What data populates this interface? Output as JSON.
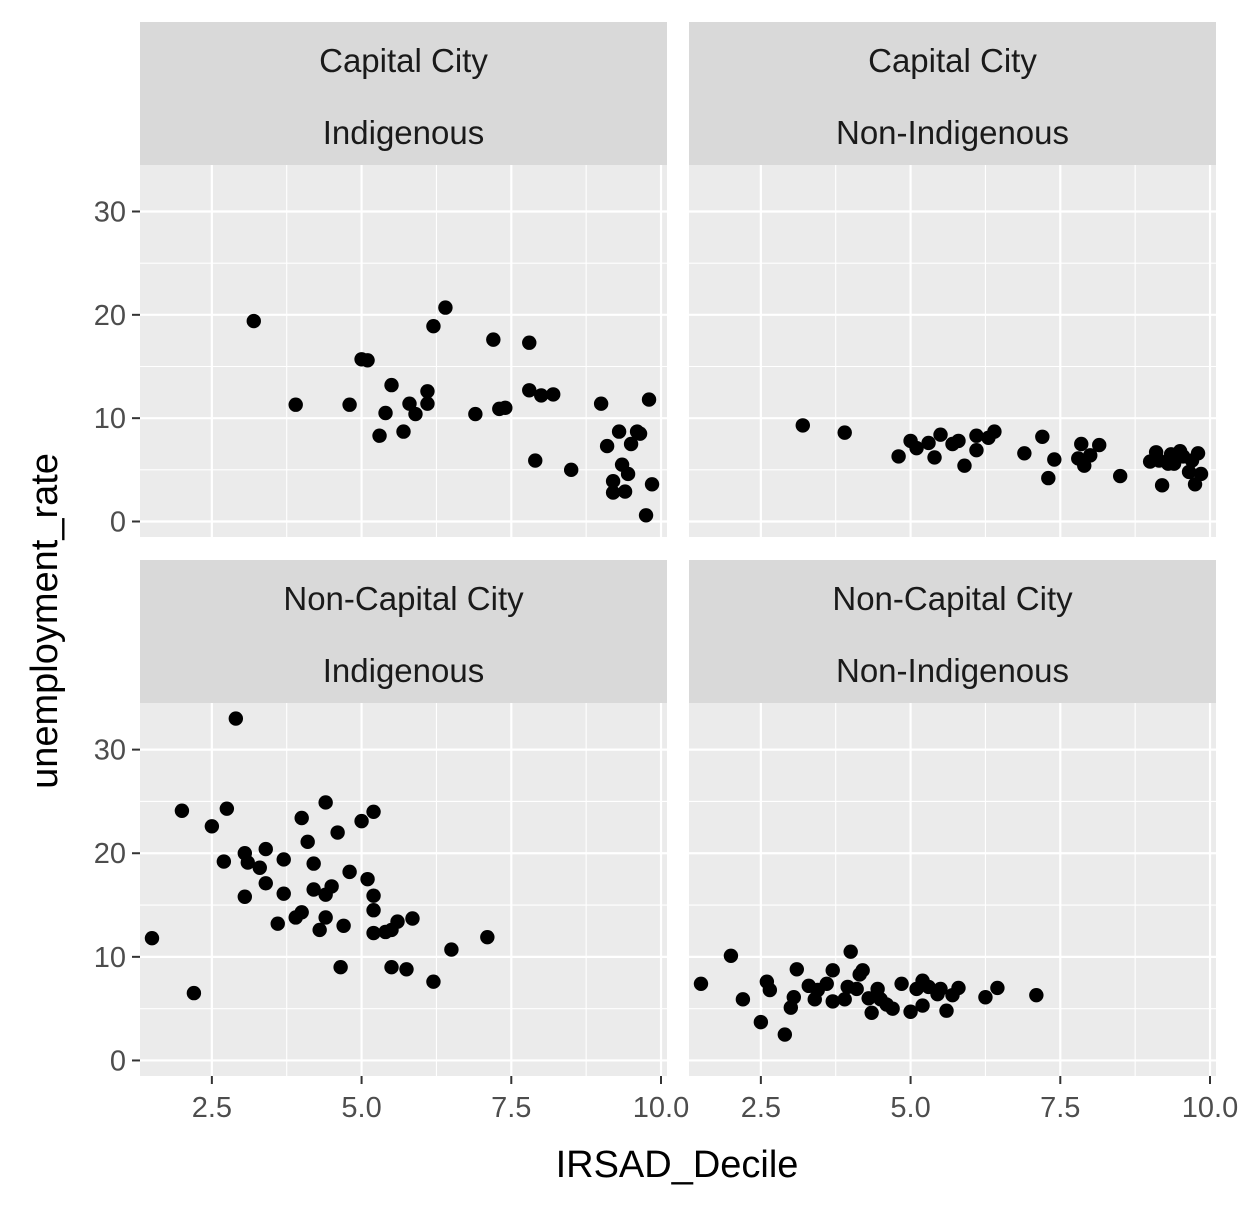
{
  "chart_data": {
    "type": "scatter",
    "xlabel": "IRSAD_Decile",
    "ylabel": "unemployment_rate",
    "xlim": [
      1.3,
      10.1
    ],
    "ylim": [
      -1.5,
      34.5
    ],
    "x_ticks": [
      2.5,
      5.0,
      7.5,
      10.0
    ],
    "x_tick_labels": [
      "2.5",
      "5.0",
      "7.5",
      "10.0"
    ],
    "y_ticks": [
      0,
      10,
      20,
      30
    ],
    "y_tick_labels": [
      "0",
      "10",
      "20",
      "30"
    ],
    "grid": true,
    "panels": [
      {
        "strip": [
          "Capital City",
          "Indigenous"
        ],
        "points": [
          [
            3.2,
            19.4
          ],
          [
            3.9,
            11.3
          ],
          [
            4.8,
            11.3
          ],
          [
            5.0,
            15.7
          ],
          [
            5.1,
            15.6
          ],
          [
            5.3,
            8.3
          ],
          [
            5.4,
            10.5
          ],
          [
            5.5,
            13.2
          ],
          [
            5.7,
            8.7
          ],
          [
            5.8,
            11.4
          ],
          [
            5.9,
            10.4
          ],
          [
            6.1,
            12.6
          ],
          [
            6.1,
            11.4
          ],
          [
            6.2,
            18.9
          ],
          [
            6.4,
            20.7
          ],
          [
            6.9,
            10.4
          ],
          [
            7.2,
            17.6
          ],
          [
            7.3,
            10.9
          ],
          [
            7.4,
            11.0
          ],
          [
            7.8,
            12.7
          ],
          [
            7.8,
            17.3
          ],
          [
            7.9,
            5.9
          ],
          [
            8.0,
            12.2
          ],
          [
            8.2,
            12.3
          ],
          [
            8.5,
            5.0
          ],
          [
            9.0,
            11.4
          ],
          [
            9.1,
            7.3
          ],
          [
            9.2,
            3.9
          ],
          [
            9.2,
            2.8
          ],
          [
            9.3,
            8.7
          ],
          [
            9.35,
            5.5
          ],
          [
            9.4,
            2.9
          ],
          [
            9.45,
            4.6
          ],
          [
            9.5,
            7.5
          ],
          [
            9.6,
            8.7
          ],
          [
            9.65,
            8.5
          ],
          [
            9.75,
            0.6
          ],
          [
            9.8,
            11.8
          ],
          [
            9.85,
            3.6
          ]
        ]
      },
      {
        "strip": [
          "Capital City",
          "Non-Indigenous"
        ],
        "points": [
          [
            3.2,
            9.3
          ],
          [
            3.9,
            8.6
          ],
          [
            4.8,
            6.3
          ],
          [
            5.0,
            7.8
          ],
          [
            5.1,
            7.1
          ],
          [
            5.3,
            7.6
          ],
          [
            5.4,
            6.2
          ],
          [
            5.5,
            8.4
          ],
          [
            5.7,
            7.5
          ],
          [
            5.8,
            7.8
          ],
          [
            5.9,
            5.4
          ],
          [
            6.1,
            6.9
          ],
          [
            6.1,
            8.3
          ],
          [
            6.3,
            8.1
          ],
          [
            6.4,
            8.7
          ],
          [
            6.9,
            6.6
          ],
          [
            7.2,
            8.2
          ],
          [
            7.3,
            4.2
          ],
          [
            7.4,
            6.0
          ],
          [
            7.8,
            6.1
          ],
          [
            7.85,
            7.5
          ],
          [
            7.9,
            5.4
          ],
          [
            8.0,
            6.4
          ],
          [
            8.15,
            7.4
          ],
          [
            8.5,
            4.4
          ],
          [
            9.0,
            5.8
          ],
          [
            9.1,
            6.7
          ],
          [
            9.15,
            5.9
          ],
          [
            9.2,
            3.5
          ],
          [
            9.3,
            5.6
          ],
          [
            9.35,
            6.5
          ],
          [
            9.4,
            5.6
          ],
          [
            9.5,
            6.8
          ],
          [
            9.55,
            6.3
          ],
          [
            9.65,
            4.8
          ],
          [
            9.7,
            5.9
          ],
          [
            9.75,
            3.6
          ],
          [
            9.8,
            6.6
          ],
          [
            9.85,
            4.6
          ]
        ]
      },
      {
        "strip": [
          "Non-Capital City",
          "Indigenous"
        ],
        "points": [
          [
            1.5,
            11.8
          ],
          [
            2.0,
            24.1
          ],
          [
            2.2,
            6.5
          ],
          [
            2.5,
            22.6
          ],
          [
            2.7,
            19.2
          ],
          [
            2.75,
            24.3
          ],
          [
            2.9,
            33.0
          ],
          [
            3.05,
            15.8
          ],
          [
            3.05,
            20.0
          ],
          [
            3.1,
            19.1
          ],
          [
            3.3,
            18.6
          ],
          [
            3.4,
            17.1
          ],
          [
            3.4,
            20.4
          ],
          [
            3.6,
            13.2
          ],
          [
            3.7,
            16.1
          ],
          [
            3.7,
            19.4
          ],
          [
            3.9,
            13.8
          ],
          [
            4.0,
            14.3
          ],
          [
            4.0,
            23.4
          ],
          [
            4.1,
            21.1
          ],
          [
            4.2,
            16.5
          ],
          [
            4.2,
            19.0
          ],
          [
            4.3,
            12.6
          ],
          [
            4.4,
            24.9
          ],
          [
            4.4,
            16.0
          ],
          [
            4.4,
            13.8
          ],
          [
            4.5,
            16.8
          ],
          [
            4.6,
            22.0
          ],
          [
            4.65,
            9.0
          ],
          [
            4.7,
            13.0
          ],
          [
            4.8,
            18.2
          ],
          [
            5.0,
            23.1
          ],
          [
            5.1,
            17.5
          ],
          [
            5.2,
            15.9
          ],
          [
            5.2,
            14.5
          ],
          [
            5.2,
            24.0
          ],
          [
            5.2,
            12.3
          ],
          [
            5.4,
            12.4
          ],
          [
            5.5,
            9.0
          ],
          [
            5.5,
            12.6
          ],
          [
            5.6,
            13.4
          ],
          [
            5.75,
            8.8
          ],
          [
            5.85,
            13.7
          ],
          [
            6.2,
            7.6
          ],
          [
            6.5,
            10.7
          ],
          [
            7.1,
            11.9
          ]
        ]
      },
      {
        "strip": [
          "Non-Capital City",
          "Non-Indigenous"
        ],
        "points": [
          [
            1.5,
            7.4
          ],
          [
            2.0,
            10.1
          ],
          [
            2.2,
            5.9
          ],
          [
            2.5,
            3.7
          ],
          [
            2.6,
            7.6
          ],
          [
            2.65,
            6.8
          ],
          [
            2.9,
            2.5
          ],
          [
            3.0,
            5.1
          ],
          [
            3.05,
            6.1
          ],
          [
            3.1,
            8.8
          ],
          [
            3.3,
            7.2
          ],
          [
            3.4,
            5.9
          ],
          [
            3.45,
            6.8
          ],
          [
            3.6,
            7.4
          ],
          [
            3.7,
            5.7
          ],
          [
            3.7,
            8.7
          ],
          [
            3.9,
            5.9
          ],
          [
            3.95,
            7.1
          ],
          [
            4.0,
            10.5
          ],
          [
            4.1,
            6.9
          ],
          [
            4.15,
            8.3
          ],
          [
            4.2,
            8.7
          ],
          [
            4.3,
            6.0
          ],
          [
            4.35,
            4.6
          ],
          [
            4.45,
            6.9
          ],
          [
            4.5,
            5.9
          ],
          [
            4.6,
            5.4
          ],
          [
            4.7,
            5.0
          ],
          [
            4.85,
            7.4
          ],
          [
            5.0,
            4.7
          ],
          [
            5.1,
            6.9
          ],
          [
            5.2,
            7.7
          ],
          [
            5.2,
            5.3
          ],
          [
            5.3,
            7.1
          ],
          [
            5.45,
            6.4
          ],
          [
            5.5,
            6.9
          ],
          [
            5.6,
            4.8
          ],
          [
            5.7,
            6.3
          ],
          [
            5.8,
            7.0
          ],
          [
            6.25,
            6.1
          ],
          [
            6.45,
            7.0
          ],
          [
            7.1,
            6.3
          ]
        ]
      }
    ]
  }
}
